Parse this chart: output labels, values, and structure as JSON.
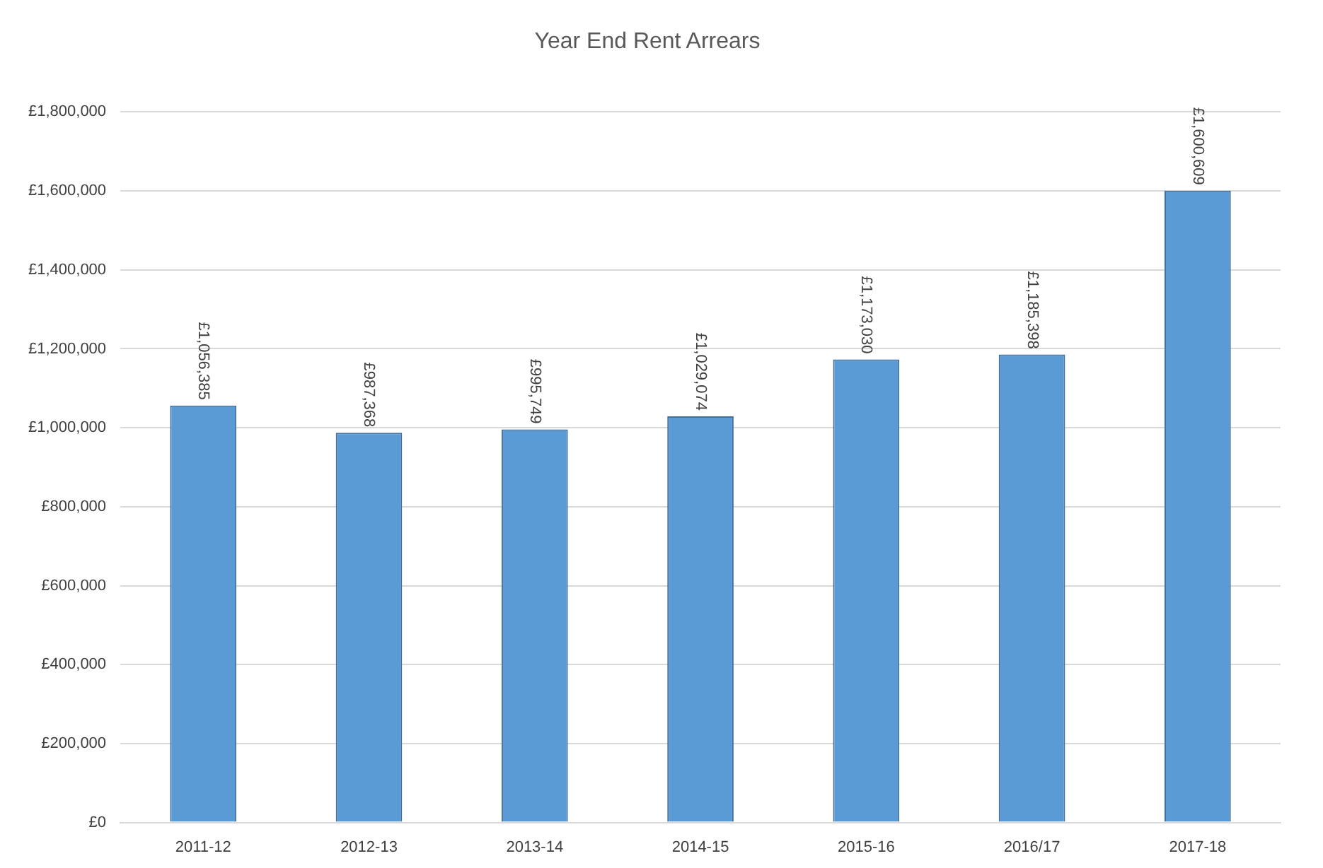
{
  "chart_data": {
    "type": "bar",
    "title": "Year End Rent Arrears",
    "categories": [
      "2011-12",
      "2012-13",
      "2013-14",
      "2014-15",
      "2015-16",
      "2016/17",
      "2017-18"
    ],
    "values": [
      1056385,
      987368,
      995749,
      1029074,
      1173030,
      1185398,
      1600609
    ],
    "value_labels": [
      "£1,056,385",
      "£987,368",
      "£995,749",
      "£1,029,074",
      "£1,173,030",
      "£1,185,398",
      "£1,600,609"
    ],
    "color": "#5b9bd5",
    "ylim": [
      0,
      1800000
    ],
    "yticks": [
      {
        "value": 0,
        "label": "£0"
      },
      {
        "value": 200000,
        "label": "£200,000"
      },
      {
        "value": 400000,
        "label": "£400,000"
      },
      {
        "value": 600000,
        "label": "£600,000"
      },
      {
        "value": 800000,
        "label": "£800,000"
      },
      {
        "value": 1000000,
        "label": "£1,000,000"
      },
      {
        "value": 1200000,
        "label": "£1,200,000"
      },
      {
        "value": 1400000,
        "label": "£1,400,000"
      },
      {
        "value": 1600000,
        "label": "£1,600,000"
      },
      {
        "value": 1800000,
        "label": "£1,800,000"
      }
    ],
    "grid": "y",
    "legend": false
  }
}
